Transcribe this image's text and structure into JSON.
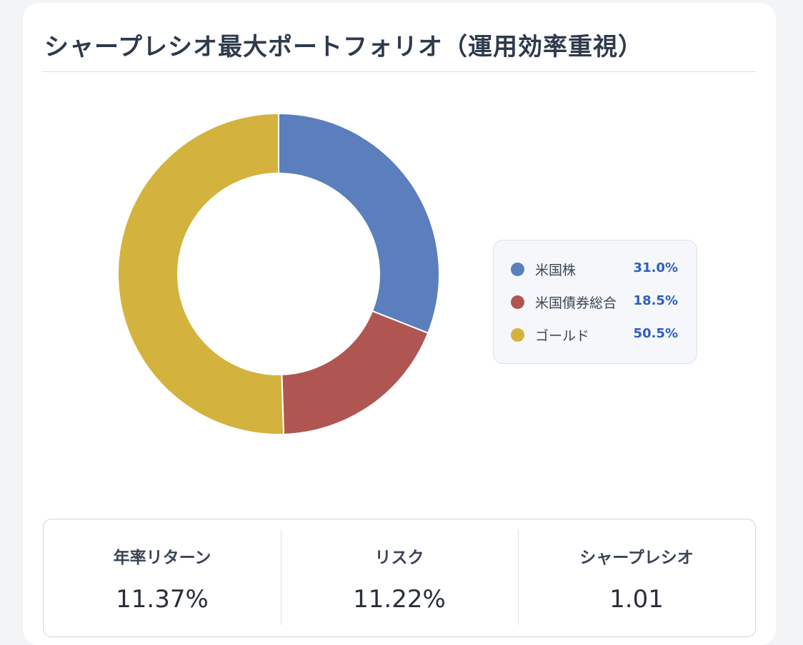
{
  "title": "シャープレシオ最大ポートフォリオ（運用効率重視）",
  "chart_data": {
    "type": "pie",
    "donut": true,
    "categories": [
      "米国株",
      "米国債券総合",
      "ゴールド"
    ],
    "values": [
      31.0,
      18.5,
      50.5
    ],
    "value_labels": [
      "31.0%",
      "18.5%",
      "50.5%"
    ],
    "colors": [
      "#5b7fbc",
      "#b05652",
      "#d3b33d"
    ],
    "legend_position": "right"
  },
  "stats": [
    {
      "label": "年率リターン",
      "value": "11.37%"
    },
    {
      "label": "リスク",
      "value": "11.22%"
    },
    {
      "label": "シャープレシオ",
      "value": "1.01"
    }
  ]
}
